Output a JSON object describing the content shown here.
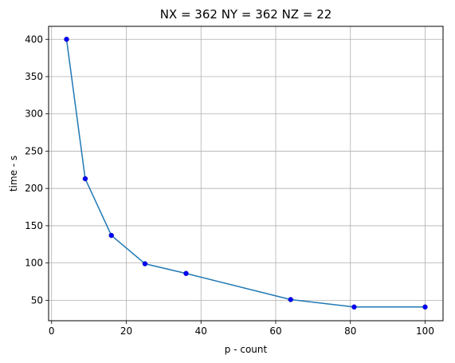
{
  "chart_data": {
    "type": "line",
    "title": "NX = 362 NY = 362 NZ = 22",
    "xlabel": "p - count",
    "ylabel": "time - s",
    "xlim": [
      -0.8,
      104.8
    ],
    "ylim": [
      22.6,
      417.4
    ],
    "xticks": [
      0,
      20,
      40,
      60,
      80,
      100
    ],
    "yticks": [
      50,
      100,
      150,
      200,
      250,
      300,
      350,
      400
    ],
    "grid": true,
    "series": [
      {
        "x": [
          4,
          9,
          16,
          25,
          36,
          64,
          81,
          100
        ],
        "y": [
          400,
          213,
          137,
          99,
          86,
          51,
          41,
          41
        ],
        "line_color": "#1f77b4",
        "marker_color": "#0000ff",
        "marker": "circle"
      }
    ]
  }
}
